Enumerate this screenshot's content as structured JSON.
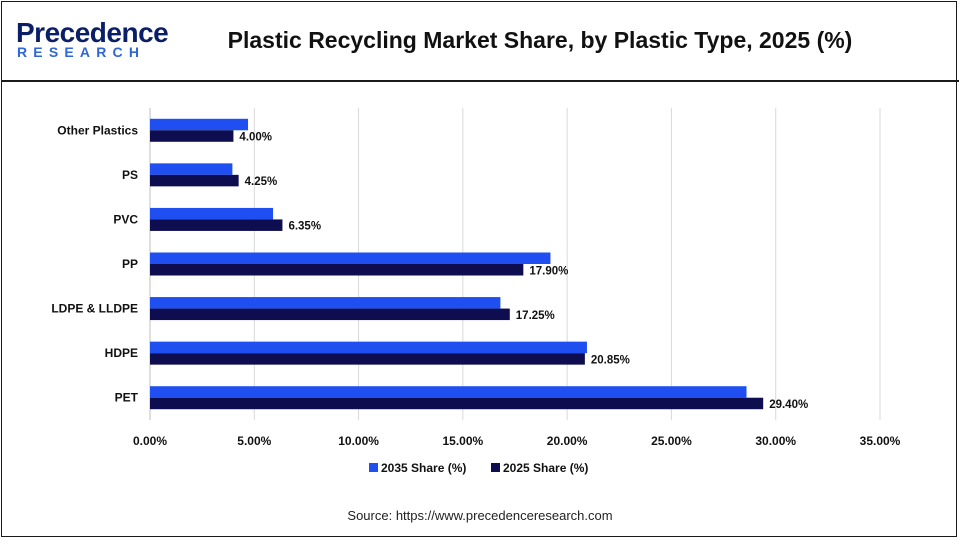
{
  "header": {
    "logo_word": "Precedence",
    "logo_sub": "RESEARCH",
    "title": "Plastic Recycling Market Share, by Plastic Type, 2025 (%)"
  },
  "footer": {
    "source": "Source: https://www.precedenceresearch.com"
  },
  "colors": {
    "series_2035": "#1f4ff0",
    "series_2025": "#0d0d4f",
    "grid": "#d9d9d9",
    "text": "#111111"
  },
  "chart_data": {
    "type": "bar",
    "orientation": "horizontal",
    "title": "Plastic Recycling Market Share, by Plastic Type, 2025 (%)",
    "categories": [
      "Other Plastics",
      "PS",
      "PVC",
      "PP",
      "LDPE & LLDPE",
      "HDPE",
      "PET"
    ],
    "series": [
      {
        "name": "2035 Share (%)",
        "values": [
          4.7,
          3.95,
          5.9,
          19.2,
          16.8,
          20.95,
          28.6
        ]
      },
      {
        "name": "2025 Share (%)",
        "values": [
          4.0,
          4.25,
          6.35,
          17.9,
          17.25,
          20.85,
          29.4
        ]
      }
    ],
    "data_labels": [
      "4.00%",
      "4.25%",
      "6.35%",
      "17.90%",
      "17.25%",
      "20.85%",
      "29.40%"
    ],
    "x_ticks": [
      "0.00%",
      "5.00%",
      "10.00%",
      "15.00%",
      "20.00%",
      "25.00%",
      "30.00%",
      "35.00%"
    ],
    "xlim": [
      0,
      35
    ],
    "grid": true,
    "legend_position": "bottom"
  }
}
